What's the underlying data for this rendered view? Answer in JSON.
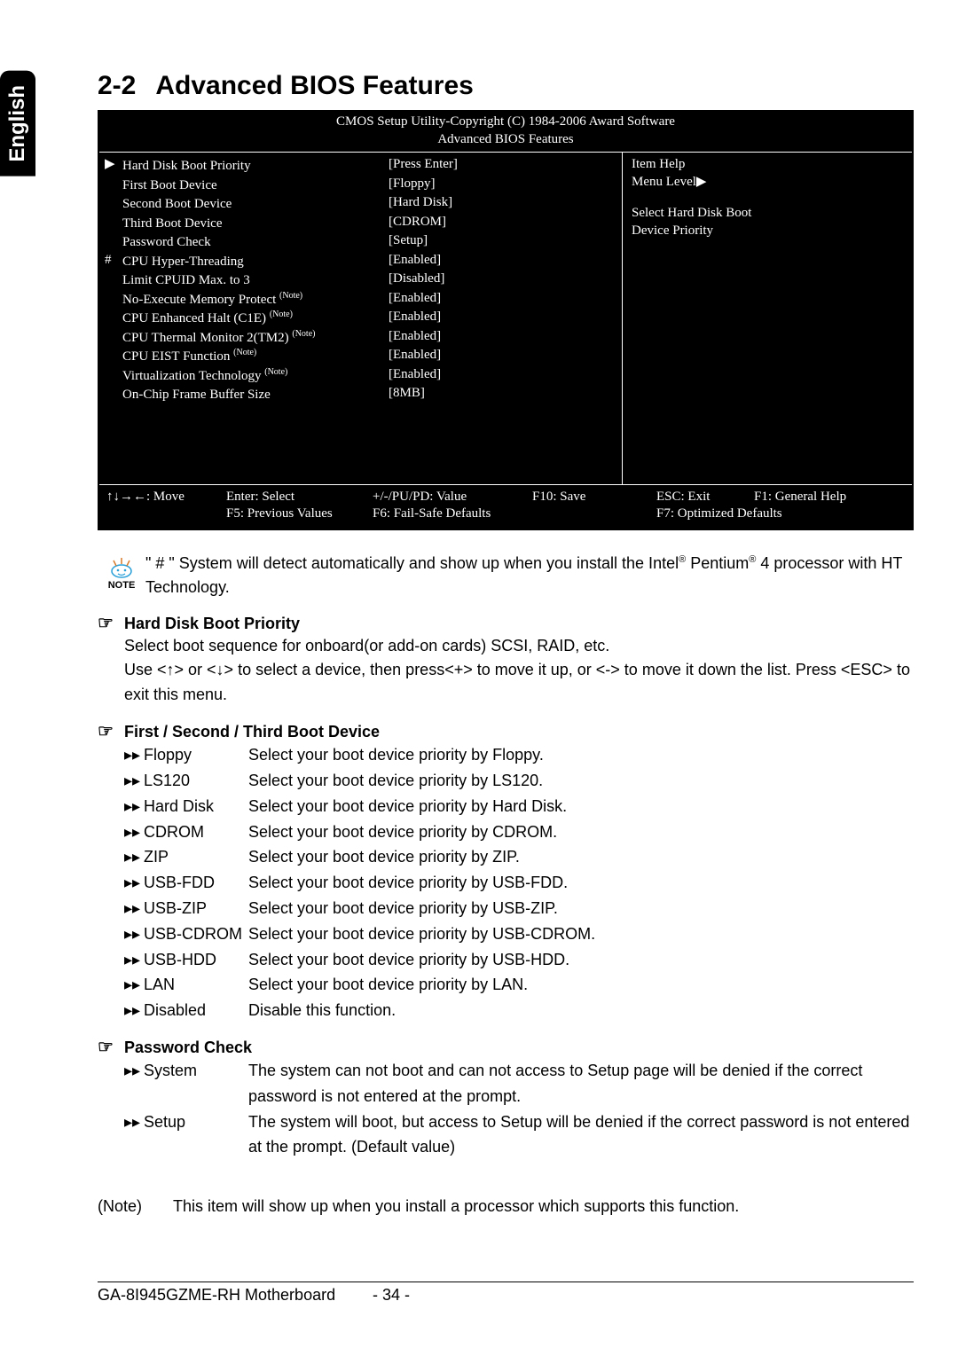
{
  "side_tab": "English",
  "section": {
    "number": "2-2",
    "title": "Advanced BIOS Features"
  },
  "bios": {
    "header_line1": "CMOS Setup Utility-Copyright (C) 1984-2006 Award Software",
    "header_line2": "Advanced BIOS Features",
    "rows": [
      {
        "mark": "▶",
        "label": "Hard Disk Boot Priority",
        "note": "",
        "value": "[Press Enter]"
      },
      {
        "mark": "",
        "label": "First Boot Device",
        "note": "",
        "value": "[Floppy]"
      },
      {
        "mark": "",
        "label": "Second Boot Device",
        "note": "",
        "value": "[Hard Disk]"
      },
      {
        "mark": "",
        "label": "Third Boot Device",
        "note": "",
        "value": "[CDROM]"
      },
      {
        "mark": "",
        "label": "Password Check",
        "note": "",
        "value": "[Setup]"
      },
      {
        "mark": "#",
        "label": "CPU Hyper-Threading",
        "note": "",
        "value": "[Enabled]"
      },
      {
        "mark": "",
        "label": "Limit CPUID Max. to 3",
        "note": "",
        "value": "[Disabled]"
      },
      {
        "mark": "",
        "label": "No-Execute Memory Protect",
        "note": "(Note)",
        "value": "[Enabled]"
      },
      {
        "mark": "",
        "label": "CPU Enhanced Halt (C1E)",
        "note": "(Note)",
        "value": "[Enabled]"
      },
      {
        "mark": "",
        "label": "CPU Thermal Monitor 2(TM2)",
        "note": "(Note)",
        "value": "[Enabled]"
      },
      {
        "mark": "",
        "label": "CPU EIST Function",
        "note": "(Note)",
        "value": "[Enabled]"
      },
      {
        "mark": "",
        "label": "Virtualization Technology",
        "note": "(Note)",
        "value": "[Enabled]"
      },
      {
        "mark": "",
        "label": "On-Chip Frame Buffer Size",
        "note": "",
        "value": "[8MB]"
      }
    ],
    "help": {
      "title": "Item Help",
      "menu_level": "Menu Level",
      "desc1": "Select Hard Disk Boot",
      "desc2": "Device Priority"
    },
    "footer": {
      "c1": "↑↓→←: Move",
      "c2": "Enter: Select",
      "c3": "+/-/PU/PD: Value",
      "c4": "F10: Save",
      "c5": "ESC: Exit",
      "c6": "F1: General Help",
      "c7": "F5: Previous Values",
      "c8": "F6: Fail-Safe Defaults",
      "c9": "F7: Optimized Defaults"
    }
  },
  "note": {
    "label": "NOTE",
    "text_pre": "\" # \" System will detect automatically and show up when you install the Intel",
    "reg1": "®",
    "mid": " Pentium",
    "reg2": "®",
    "text_post": " 4 processor with HT Technology."
  },
  "hdbp": {
    "title": "Hard Disk Boot Priority",
    "line1": "Select boot sequence for onboard(or add-on cards) SCSI, RAID, etc.",
    "line2": "Use <↑> or <↓> to select a device, then press<+> to move it up, or <-> to move it down the list. Press <ESC> to exit this menu."
  },
  "boot": {
    "title": "First / Second / Third Boot Device",
    "options": [
      {
        "name": "Floppy",
        "desc": "Select your boot device priority by Floppy."
      },
      {
        "name": "LS120",
        "desc": "Select your boot device priority by LS120."
      },
      {
        "name": "Hard Disk",
        "desc": "Select your boot device priority by Hard Disk."
      },
      {
        "name": "CDROM",
        "desc": "Select your boot device priority by CDROM."
      },
      {
        "name": "ZIP",
        "desc": "Select your boot device priority by ZIP."
      },
      {
        "name": "USB-FDD",
        "desc": "Select your boot device priority by USB-FDD."
      },
      {
        "name": "USB-ZIP",
        "desc": "Select your boot device priority by USB-ZIP."
      },
      {
        "name": "USB-CDROM",
        "desc": "Select your boot device priority by USB-CDROM."
      },
      {
        "name": "USB-HDD",
        "desc": "Select your boot device priority by USB-HDD."
      },
      {
        "name": "LAN",
        "desc": "Select your boot device priority by LAN."
      },
      {
        "name": "Disabled",
        "desc": "Disable this function."
      }
    ]
  },
  "pw": {
    "title": "Password Check",
    "options": [
      {
        "name": "System",
        "desc": "The system can not boot and can not access to Setup page will be denied if the correct password is not entered at the prompt."
      },
      {
        "name": "Setup",
        "desc": "The system will boot, but access to Setup will be denied if the correct password is not entered at the prompt. (Default value)"
      }
    ]
  },
  "footnote": {
    "label": "(Note)",
    "text": "This item will show up when you install a processor which supports this function."
  },
  "footer": {
    "model": "GA-8I945GZME-RH Motherboard",
    "page": "- 34 -"
  },
  "glyphs": {
    "hand": "☞",
    "double_arrow": "▸▸",
    "tri_right": "▶"
  }
}
